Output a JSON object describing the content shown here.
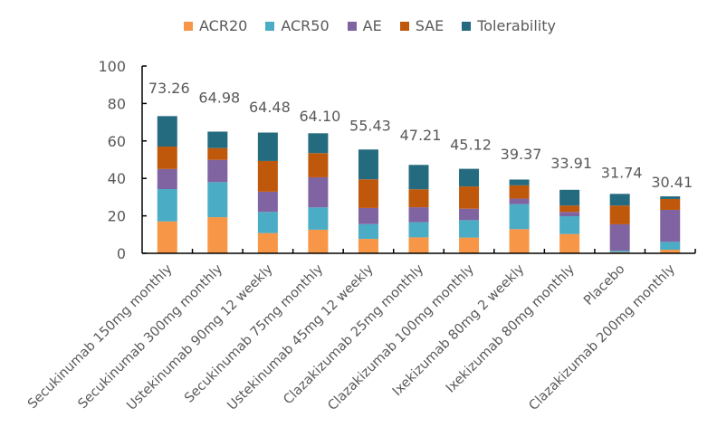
{
  "chart_data": {
    "type": "bar",
    "stacked": true,
    "title": "",
    "xlabel": "",
    "ylabel": "",
    "ylim": [
      0,
      100
    ],
    "yticks": [
      0,
      20,
      40,
      60,
      80,
      100
    ],
    "grid": false,
    "legend_position": "top",
    "categories": [
      "Secukinumab 150mg  monthly",
      "Secukinumab 300mg  monthly",
      "Ustekinumab 90mg 12 weekly",
      "Secukinumab 75mg  monthly",
      "Ustekinumab 45mg 12 weekly",
      "Clazakizumab 25mg monthly",
      "Clazakizumab 100mg monthly",
      "Ixekizumab 80mg 2 weekly",
      "Ixekizumab 80mg monthly",
      "Placebo",
      "Clazakizumab 200mg monthly"
    ],
    "series": [
      {
        "name": "ACR20",
        "color": "#F79646",
        "values": [
          17.0,
          19.3,
          10.8,
          12.6,
          7.7,
          8.5,
          8.4,
          12.9,
          10.3,
          0.6,
          1.9
        ]
      },
      {
        "name": "ACR50",
        "color": "#4BACC6",
        "values": [
          17.3,
          18.7,
          11.3,
          11.9,
          7.9,
          8.1,
          9.3,
          13.3,
          9.5,
          0.8,
          4.2
        ]
      },
      {
        "name": "AE",
        "color": "#8064A2",
        "values": [
          10.7,
          11.9,
          10.8,
          16.1,
          8.6,
          8.0,
          6.1,
          3.0,
          2.3,
          14.1,
          17.1
        ]
      },
      {
        "name": "SAE",
        "color": "#C0580C",
        "values": [
          12.0,
          6.3,
          16.4,
          12.9,
          15.3,
          9.6,
          11.9,
          7.1,
          3.4,
          10.0,
          5.8
        ]
      },
      {
        "name": "Tolerability",
        "color": "#256B7F",
        "values": [
          16.26,
          8.78,
          15.18,
          10.6,
          15.93,
          13.01,
          9.42,
          3.07,
          8.41,
          6.24,
          1.41
        ]
      }
    ],
    "totals": [
      "73.26",
      "64.98",
      "64.48",
      "64.10",
      "55.43",
      "47.21",
      "45.12",
      "39.37",
      "33.91",
      "31.74",
      "30.41"
    ]
  }
}
